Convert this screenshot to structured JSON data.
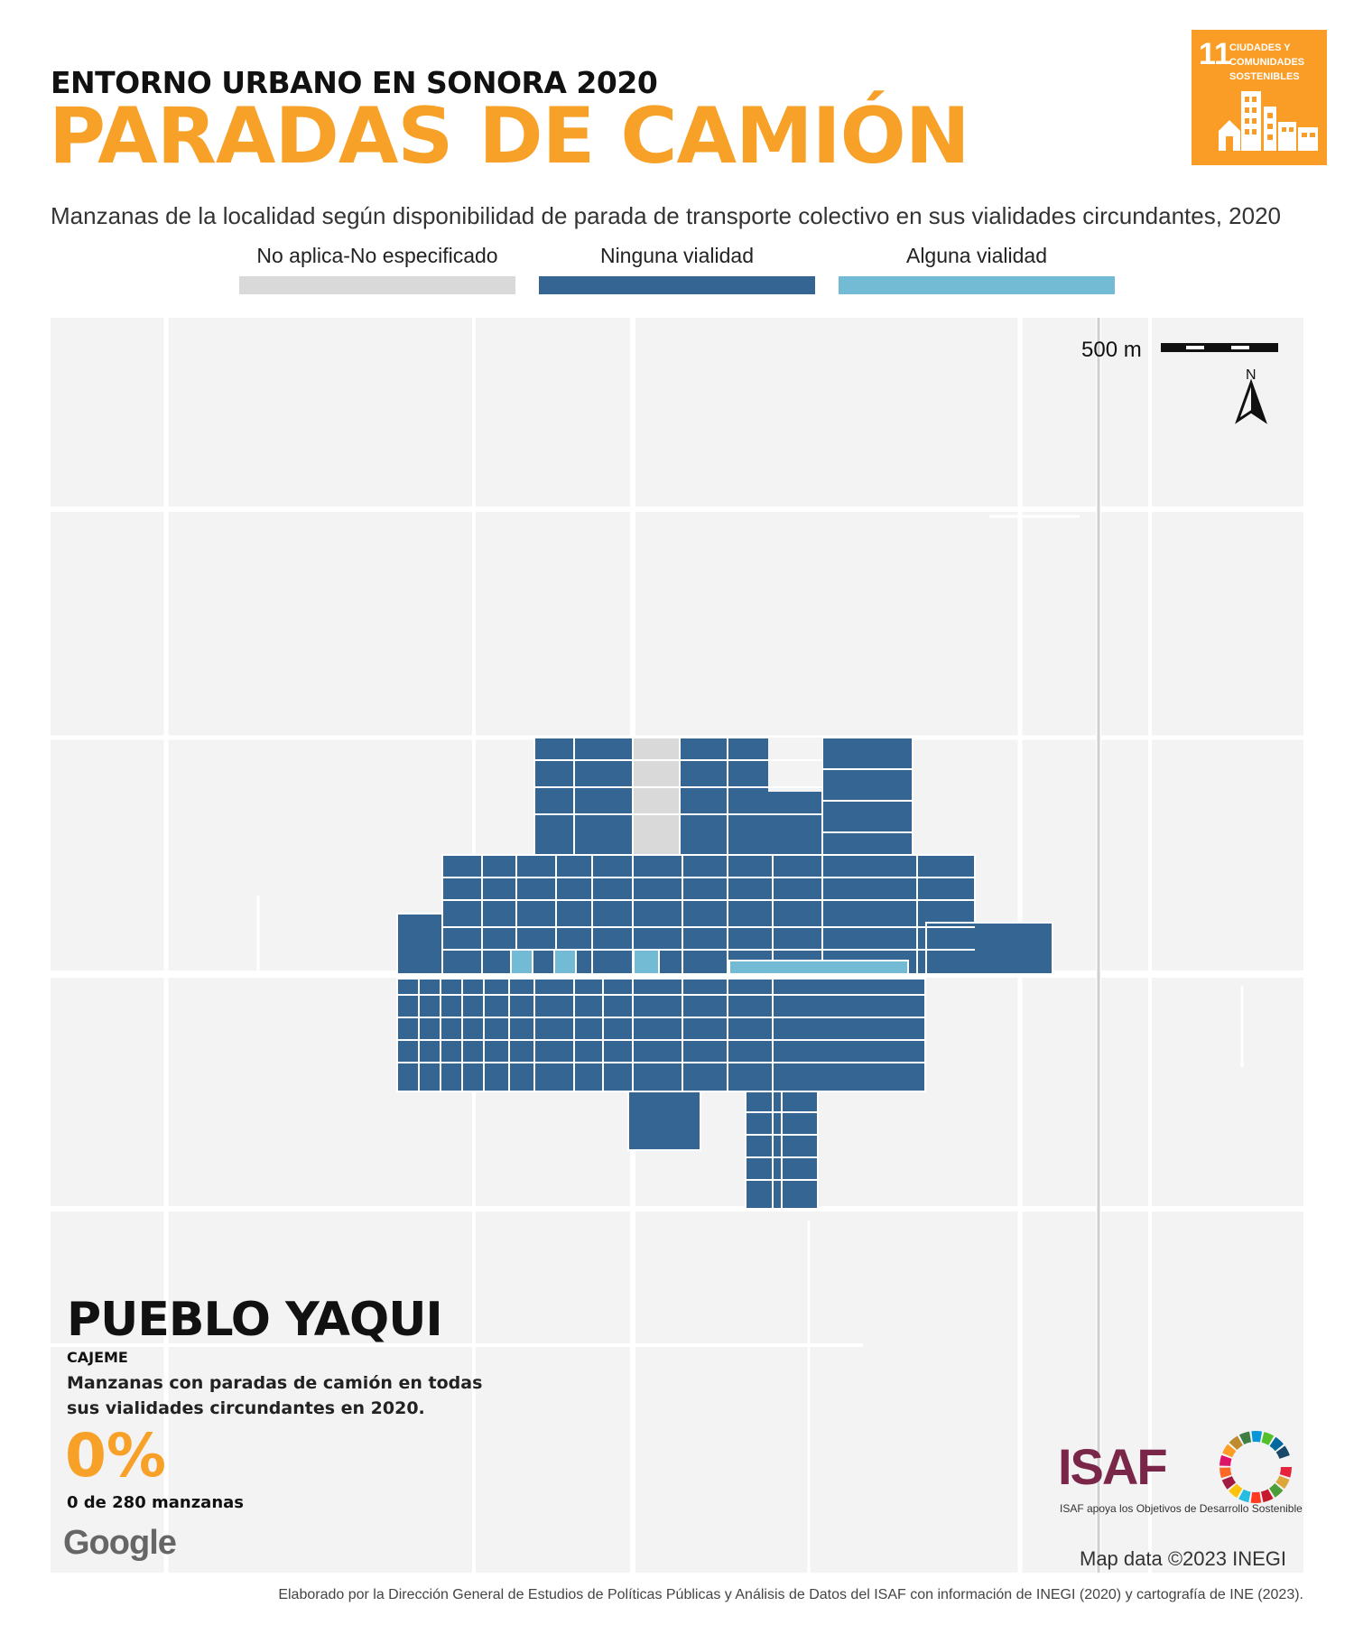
{
  "header": {
    "kicker": "ENTORNO URBANO EN SONORA 2020",
    "title": "PARADAS DE CAMIÓN",
    "subtitle": "Manzanas de la localidad según disponibilidad de parada de transporte colectivo en sus vialidades circundantes, 2020"
  },
  "sdg": {
    "number": "11",
    "label": "CIUDADES Y COMUNIDADES SOSTENIBLES",
    "color": "#F99D26"
  },
  "legend": [
    {
      "label": "No aplica-No especificado",
      "color": "#d9d9d9"
    },
    {
      "label": "Ninguna vialidad",
      "color": "#356693"
    },
    {
      "label": "Alguna vialidad",
      "color": "#73bad4"
    }
  ],
  "map": {
    "scale_label": "500 m",
    "north_label": "N",
    "attribution_logo": "Google",
    "attribution": "Map data ©2023 INEGI"
  },
  "locality": {
    "name": "PUEBLO YAQUI",
    "municipality": "CAJEME",
    "description": "Manzanas con paradas de camión en todas sus vialidades circundantes en 2020.",
    "percentage": "0%",
    "count_text": "0 de 280 manzanas",
    "accent_color": "#F7A128"
  },
  "branding": {
    "org": "ISAF",
    "tagline": "ISAF apoya los Objetivos de Desarrollo Sostenible"
  },
  "footer": {
    "credit": "Elaborado por la Dirección General de Estudios de Políticas Públicas y Análisis de Datos del ISAF con información de INEGI (2020) y cartografía de INE (2023)."
  }
}
